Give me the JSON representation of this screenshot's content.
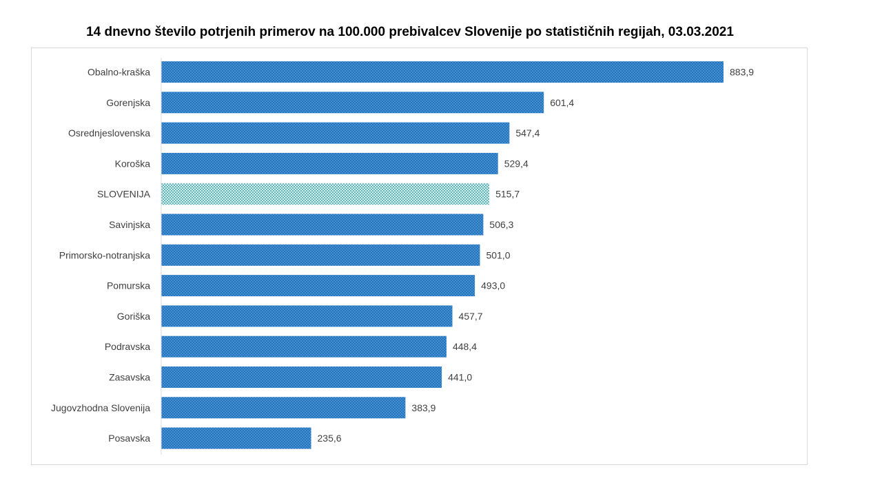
{
  "chart_data": {
    "type": "bar",
    "orientation": "horizontal",
    "title": "14 dnevno število potrjenih primerov na 100.000 prebivalcev Slovenije po statističnih regijah, 03.03.2021",
    "xlabel": "",
    "ylabel": "",
    "xlim": [
      0,
      883.9
    ],
    "grid": false,
    "legend": "none",
    "categories": [
      "Obalno-kraška",
      "Gorenjska",
      "Osrednjeslovenska",
      "Koroška",
      "SLOVENIJA",
      "Savinjska",
      "Primorsko-notranjska",
      "Pomurska",
      "Goriška",
      "Podravska",
      "Zasavska",
      "Jugovzhodna Slovenija",
      "Posavska"
    ],
    "values": [
      883.9,
      601.4,
      547.4,
      529.4,
      515.7,
      506.3,
      501.0,
      493.0,
      457.7,
      448.4,
      441.0,
      383.9,
      235.6
    ],
    "value_labels": [
      "883,9",
      "601,4",
      "547,4",
      "529,4",
      "515,7",
      "506,3",
      "501,0",
      "493,0",
      "457,7",
      "448,4",
      "441,0",
      "383,9",
      "235,6"
    ],
    "highlight_category": "SLOVENIJA",
    "colors": {
      "bar": "#3d8fd6",
      "bar_pattern": "#1f5fa3",
      "highlight": "#cfeeee",
      "highlight_pattern": "#1f8a8a",
      "axis": "#d9d9d9",
      "text": "#404040"
    }
  }
}
